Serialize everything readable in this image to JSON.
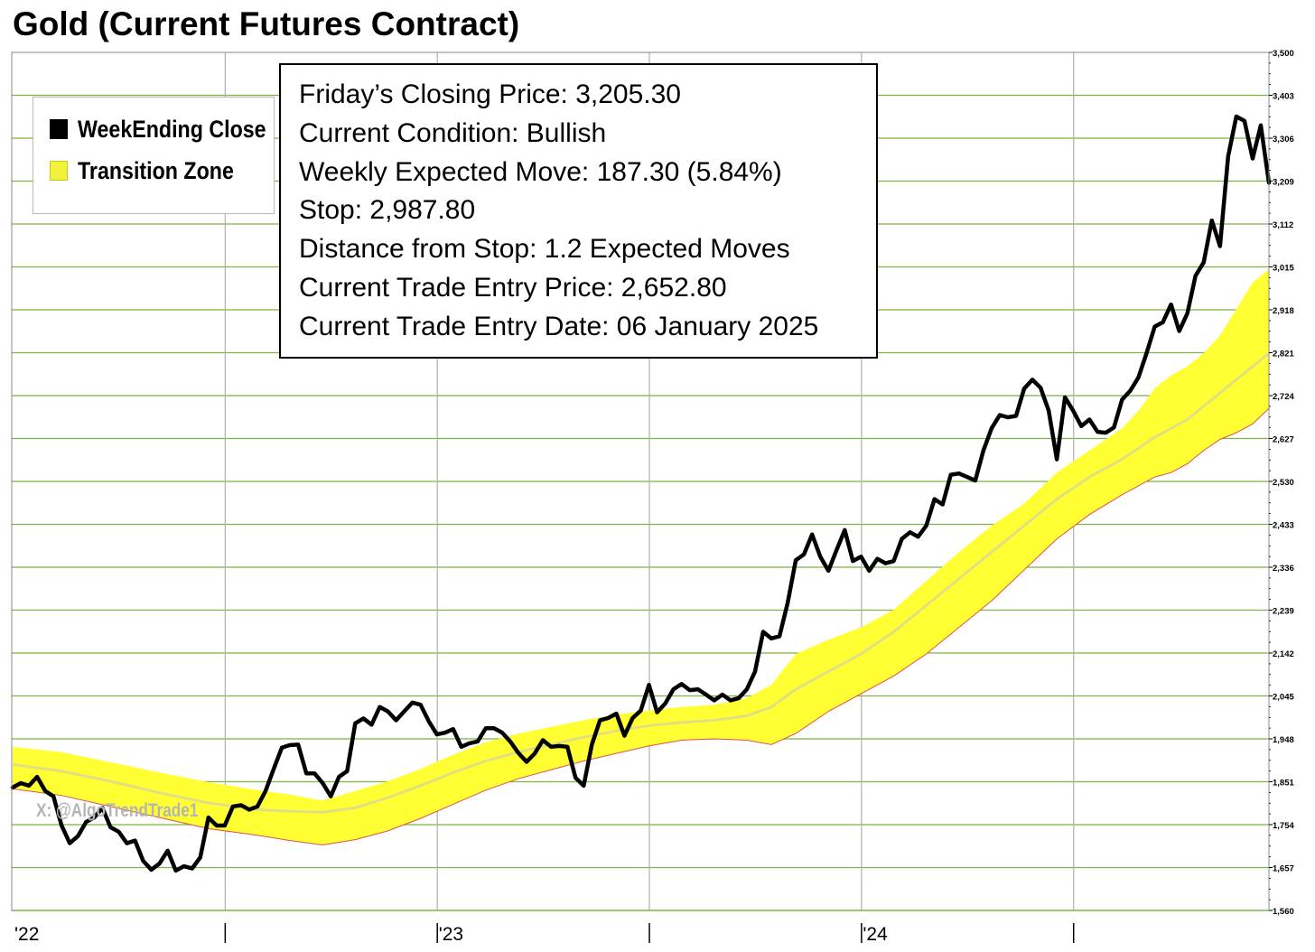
{
  "title": "Gold (Current Futures Contract)",
  "legend": {
    "items": [
      {
        "label": "WeekEnding Close",
        "color": "#000000"
      },
      {
        "label": "Transition Zone",
        "color": "#f2f23a"
      }
    ]
  },
  "info": {
    "lines": [
      "Friday’s Closing Price: 3,205.30",
      "Current Condition: Bullish",
      "Weekly Expected Move: 187.30 (5.84%)",
      "Stop: 2,987.80",
      "Distance from Stop: 1.2 Expected Moves",
      "Current Trade Entry Price: 2,652.80",
      "Current Trade Entry Date: 06 January 2025"
    ]
  },
  "watermark": "X: @AlgoTrendTrade1",
  "colors": {
    "price_line": "#000000",
    "zone_fill": "#ffff33",
    "zone_mid": "#e0e080",
    "zone_lower_edge": "#e05050",
    "grid_horizontal": "#7cb342",
    "grid_vertical": "#b0b0b0"
  },
  "chart_data": {
    "type": "line",
    "title": "Gold (Current Futures Contract)",
    "x_unit": "week index (0 = first week of 2022)",
    "ylim": [
      1560,
      3500
    ],
    "y_ticks": [
      "3,500",
      "3,403",
      "3,306",
      "3,209",
      "3,112",
      "3,015",
      "2,918",
      "2,821",
      "2,724",
      "2,627",
      "2,530",
      "2,433",
      "2,336",
      "2,239",
      "2,142",
      "2,045",
      "1,948",
      "1,851",
      "1,754",
      "1,657",
      "1,560"
    ],
    "x_tick_labels": [
      "'22",
      "'23",
      "'24"
    ],
    "grid": true,
    "legend_position": "top-left",
    "series": [
      {
        "name": "WeekEnding Close",
        "points": [
          [
            0,
            1838
          ],
          [
            1,
            1848
          ],
          [
            2,
            1842
          ],
          [
            3,
            1862
          ],
          [
            4,
            1830
          ],
          [
            5,
            1818
          ],
          [
            6,
            1752
          ],
          [
            7,
            1712
          ],
          [
            8,
            1728
          ],
          [
            9,
            1760
          ],
          [
            10,
            1770
          ],
          [
            11,
            1792
          ],
          [
            12,
            1748
          ],
          [
            13,
            1738
          ],
          [
            14,
            1712
          ],
          [
            15,
            1718
          ],
          [
            16,
            1672
          ],
          [
            17,
            1652
          ],
          [
            18,
            1666
          ],
          [
            19,
            1695
          ],
          [
            20,
            1650
          ],
          [
            21,
            1660
          ],
          [
            22,
            1655
          ],
          [
            23,
            1680
          ],
          [
            24,
            1770
          ],
          [
            25,
            1752
          ],
          [
            26,
            1752
          ],
          [
            27,
            1795
          ],
          [
            28,
            1798
          ],
          [
            29,
            1788
          ],
          [
            30,
            1795
          ],
          [
            31,
            1830
          ],
          [
            32,
            1880
          ],
          [
            33,
            1928
          ],
          [
            34,
            1934
          ],
          [
            35,
            1935
          ],
          [
            36,
            1870
          ],
          [
            37,
            1870
          ],
          [
            38,
            1848
          ],
          [
            39,
            1818
          ],
          [
            40,
            1862
          ],
          [
            41,
            1875
          ],
          [
            42,
            1983
          ],
          [
            43,
            1994
          ],
          [
            44,
            1980
          ],
          [
            45,
            2020
          ],
          [
            46,
            2010
          ],
          [
            47,
            1990
          ],
          [
            48,
            2010
          ],
          [
            49,
            2030
          ],
          [
            50,
            2025
          ],
          [
            51,
            1988
          ],
          [
            52,
            1958
          ],
          [
            53,
            1962
          ],
          [
            54,
            1970
          ],
          [
            55,
            1930
          ],
          [
            56,
            1938
          ],
          [
            57,
            1942
          ],
          [
            58,
            1972
          ],
          [
            59,
            1972
          ],
          [
            60,
            1962
          ],
          [
            61,
            1942
          ],
          [
            62,
            1916
          ],
          [
            63,
            1896
          ],
          [
            64,
            1915
          ],
          [
            65,
            1945
          ],
          [
            66,
            1930
          ],
          [
            67,
            1932
          ],
          [
            68,
            1930
          ],
          [
            69,
            1860
          ],
          [
            70,
            1842
          ],
          [
            71,
            1935
          ],
          [
            72,
            1990
          ],
          [
            73,
            1995
          ],
          [
            74,
            2005
          ],
          [
            75,
            1955
          ],
          [
            76,
            1995
          ],
          [
            77,
            2012
          ],
          [
            78,
            2070
          ],
          [
            79,
            2008
          ],
          [
            80,
            2028
          ],
          [
            81,
            2060
          ],
          [
            82,
            2072
          ],
          [
            83,
            2058
          ],
          [
            84,
            2060
          ],
          [
            85,
            2048
          ],
          [
            86,
            2035
          ],
          [
            87,
            2048
          ],
          [
            88,
            2035
          ],
          [
            89,
            2040
          ],
          [
            90,
            2060
          ],
          [
            91,
            2100
          ],
          [
            92,
            2190
          ],
          [
            93,
            2175
          ],
          [
            94,
            2180
          ],
          [
            95,
            2255
          ],
          [
            96,
            2352
          ],
          [
            97,
            2365
          ],
          [
            98,
            2410
          ],
          [
            99,
            2360
          ],
          [
            100,
            2328
          ],
          [
            101,
            2375
          ],
          [
            102,
            2420
          ],
          [
            103,
            2350
          ],
          [
            104,
            2360
          ],
          [
            105,
            2328
          ],
          [
            106,
            2355
          ],
          [
            107,
            2345
          ],
          [
            108,
            2350
          ],
          [
            109,
            2400
          ],
          [
            110,
            2415
          ],
          [
            111,
            2405
          ],
          [
            112,
            2430
          ],
          [
            113,
            2490
          ],
          [
            114,
            2478
          ],
          [
            115,
            2545
          ],
          [
            116,
            2548
          ],
          [
            117,
            2540
          ],
          [
            118,
            2532
          ],
          [
            119,
            2600
          ],
          [
            120,
            2650
          ],
          [
            121,
            2680
          ],
          [
            122,
            2675
          ],
          [
            123,
            2678
          ],
          [
            124,
            2740
          ],
          [
            125,
            2760
          ],
          [
            126,
            2742
          ],
          [
            127,
            2690
          ],
          [
            128,
            2580
          ],
          [
            129,
            2720
          ],
          [
            130,
            2690
          ],
          [
            131,
            2655
          ],
          [
            132,
            2670
          ],
          [
            133,
            2642
          ],
          [
            134,
            2640
          ],
          [
            135,
            2652
          ],
          [
            136,
            2715
          ],
          [
            137,
            2735
          ],
          [
            138,
            2765
          ],
          [
            139,
            2820
          ],
          [
            140,
            2880
          ],
          [
            141,
            2890
          ],
          [
            142,
            2930
          ],
          [
            143,
            2870
          ],
          [
            144,
            2910
          ],
          [
            145,
            2995
          ],
          [
            146,
            3025
          ],
          [
            147,
            3120
          ],
          [
            148,
            3062
          ],
          [
            149,
            3265
          ],
          [
            150,
            3355
          ],
          [
            151,
            3345
          ],
          [
            152,
            3260
          ],
          [
            153,
            3335
          ],
          [
            154,
            3205.3
          ]
        ]
      },
      {
        "name": "Transition Zone",
        "upper": [
          [
            0,
            1930
          ],
          [
            6,
            1918
          ],
          [
            12,
            1895
          ],
          [
            18,
            1872
          ],
          [
            24,
            1850
          ],
          [
            30,
            1832
          ],
          [
            34,
            1822
          ],
          [
            38,
            1808
          ],
          [
            42,
            1830
          ],
          [
            46,
            1852
          ],
          [
            50,
            1880
          ],
          [
            54,
            1912
          ],
          [
            58,
            1940
          ],
          [
            62,
            1960
          ],
          [
            66,
            1975
          ],
          [
            70,
            1990
          ],
          [
            74,
            2003
          ],
          [
            78,
            2012
          ],
          [
            82,
            2020
          ],
          [
            86,
            2025
          ],
          [
            90,
            2040
          ],
          [
            93,
            2070
          ],
          [
            96,
            2140
          ],
          [
            100,
            2172
          ],
          [
            104,
            2200
          ],
          [
            108,
            2240
          ],
          [
            112,
            2305
          ],
          [
            116,
            2370
          ],
          [
            120,
            2430
          ],
          [
            124,
            2480
          ],
          [
            128,
            2550
          ],
          [
            132,
            2600
          ],
          [
            136,
            2650
          ],
          [
            138,
            2690
          ],
          [
            140,
            2740
          ],
          [
            142,
            2770
          ],
          [
            144,
            2790
          ],
          [
            146,
            2820
          ],
          [
            148,
            2860
          ],
          [
            150,
            2920
          ],
          [
            152,
            2980
          ],
          [
            154,
            3010
          ]
        ],
        "mid": [
          [
            0,
            1890
          ],
          [
            6,
            1875
          ],
          [
            12,
            1852
          ],
          [
            18,
            1826
          ],
          [
            24,
            1803
          ],
          [
            30,
            1788
          ],
          [
            34,
            1784
          ],
          [
            38,
            1782
          ],
          [
            42,
            1792
          ],
          [
            46,
            1815
          ],
          [
            50,
            1842
          ],
          [
            54,
            1872
          ],
          [
            58,
            1898
          ],
          [
            62,
            1918
          ],
          [
            66,
            1935
          ],
          [
            70,
            1952
          ],
          [
            74,
            1966
          ],
          [
            78,
            1978
          ],
          [
            82,
            1985
          ],
          [
            86,
            1990
          ],
          [
            90,
            2000
          ],
          [
            93,
            2020
          ],
          [
            96,
            2060
          ],
          [
            100,
            2100
          ],
          [
            104,
            2140
          ],
          [
            108,
            2190
          ],
          [
            112,
            2250
          ],
          [
            116,
            2310
          ],
          [
            120,
            2370
          ],
          [
            124,
            2430
          ],
          [
            128,
            2490
          ],
          [
            132,
            2540
          ],
          [
            136,
            2580
          ],
          [
            138,
            2605
          ],
          [
            140,
            2630
          ],
          [
            142,
            2650
          ],
          [
            144,
            2670
          ],
          [
            146,
            2700
          ],
          [
            148,
            2730
          ],
          [
            150,
            2760
          ],
          [
            152,
            2790
          ],
          [
            154,
            2820
          ]
        ],
        "lower": [
          [
            0,
            1835
          ],
          [
            6,
            1820
          ],
          [
            12,
            1795
          ],
          [
            18,
            1770
          ],
          [
            24,
            1745
          ],
          [
            30,
            1730
          ],
          [
            34,
            1718
          ],
          [
            38,
            1708
          ],
          [
            42,
            1720
          ],
          [
            46,
            1740
          ],
          [
            50,
            1768
          ],
          [
            54,
            1800
          ],
          [
            58,
            1832
          ],
          [
            62,
            1858
          ],
          [
            66,
            1878
          ],
          [
            70,
            1898
          ],
          [
            74,
            1915
          ],
          [
            78,
            1932
          ],
          [
            82,
            1945
          ],
          [
            86,
            1948
          ],
          [
            90,
            1945
          ],
          [
            93,
            1935
          ],
          [
            96,
            1960
          ],
          [
            100,
            2010
          ],
          [
            104,
            2050
          ],
          [
            108,
            2090
          ],
          [
            112,
            2140
          ],
          [
            116,
            2200
          ],
          [
            120,
            2260
          ],
          [
            124,
            2330
          ],
          [
            128,
            2400
          ],
          [
            132,
            2455
          ],
          [
            136,
            2500
          ],
          [
            138,
            2520
          ],
          [
            140,
            2540
          ],
          [
            142,
            2550
          ],
          [
            144,
            2570
          ],
          [
            146,
            2600
          ],
          [
            148,
            2625
          ],
          [
            150,
            2640
          ],
          [
            152,
            2660
          ],
          [
            154,
            2695
          ]
        ]
      }
    ]
  }
}
